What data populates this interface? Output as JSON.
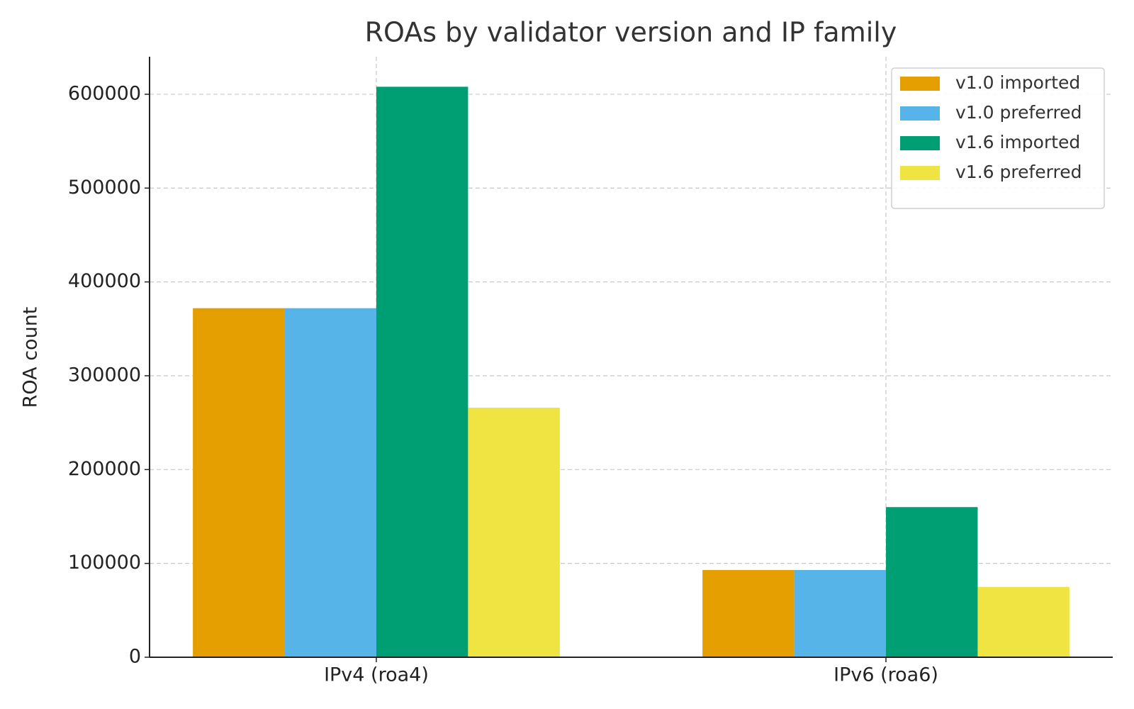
{
  "chart_data": {
    "type": "bar",
    "title": "ROAs by validator version and IP family",
    "y_label": "ROA count",
    "categories": [
      "IPv4 (roa4)",
      "IPv6 (roa6)"
    ],
    "series": [
      {
        "name": "v1.0 imported",
        "color": "#E69F00",
        "values": [
          372000,
          93000
        ]
      },
      {
        "name": "v1.0 preferred",
        "color": "#56B4E9",
        "values": [
          372000,
          93000
        ]
      },
      {
        "name": "v1.6 imported",
        "color": "#009E73",
        "values": [
          608000,
          160000
        ]
      },
      {
        "name": "v1.6 preferred",
        "color": "#F0E442",
        "values": [
          266000,
          75000
        ]
      }
    ],
    "ylim": [
      0,
      640000
    ],
    "yticks": [
      0,
      100000,
      200000,
      300000,
      400000,
      500000,
      600000
    ],
    "grid": true,
    "legend": "upper right"
  }
}
